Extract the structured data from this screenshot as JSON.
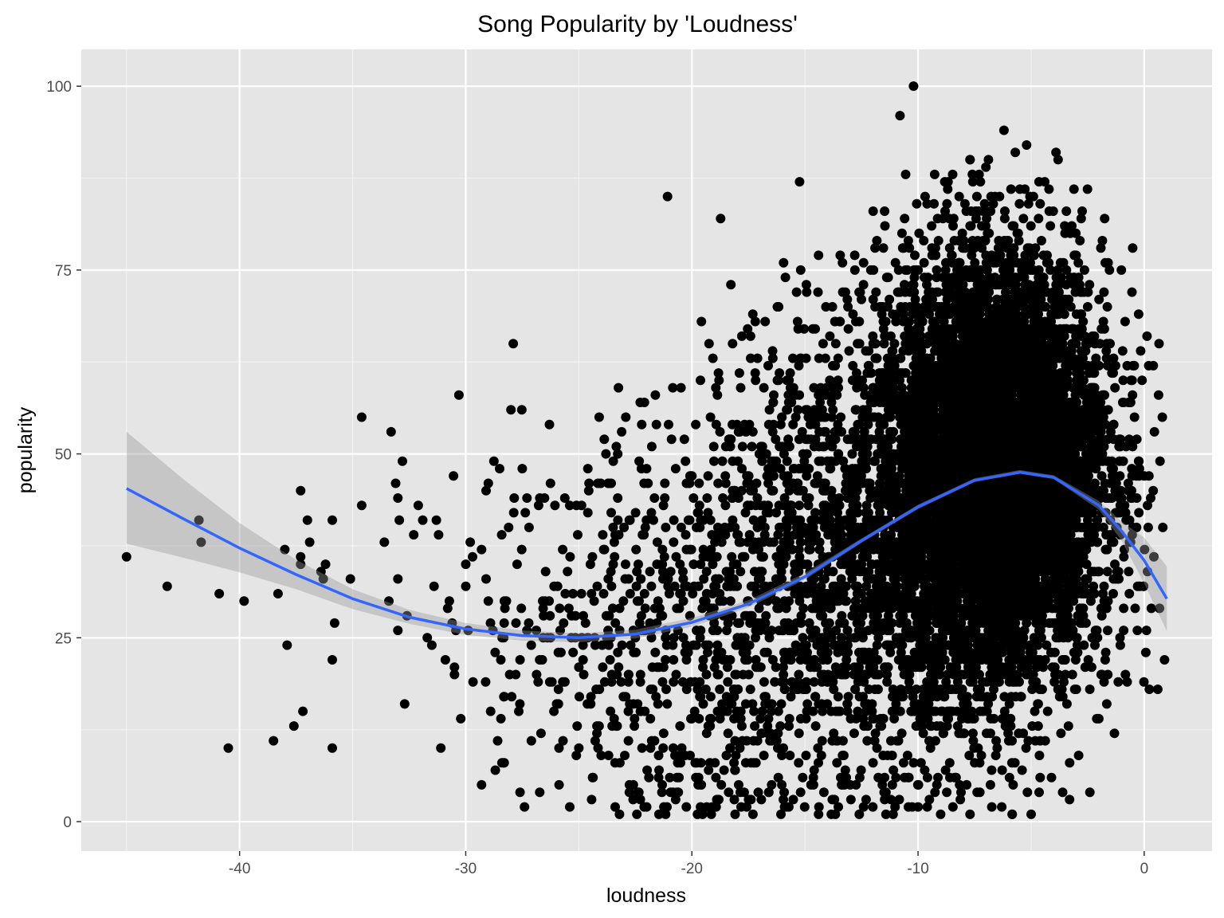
{
  "chart_data": {
    "type": "scatter",
    "title": "Song Popularity by 'Loudness'",
    "xlabel": "loudness",
    "ylabel": "popularity",
    "xlim": [
      -47,
      3
    ],
    "ylim": [
      -4,
      105
    ],
    "x_ticks": [
      -40,
      -30,
      -20,
      -10,
      0
    ],
    "x_tick_labels": [
      "-40",
      "-30",
      "-20",
      "-10",
      "0"
    ],
    "y_ticks": [
      0,
      25,
      50,
      75,
      100
    ],
    "y_tick_labels": [
      "0",
      "25",
      "50",
      "75",
      "100"
    ],
    "grid": true,
    "legend": "none",
    "colors": {
      "panel": "#e5e5e5",
      "grid_major": "#ffffff",
      "points": "#000000",
      "smooth_line": "#3366ff",
      "ribbon": "#999999"
    },
    "points": [
      [
        -45.0,
        36
      ],
      [
        -43.2,
        32
      ],
      [
        -41.8,
        41
      ],
      [
        -41.7,
        38
      ],
      [
        -40.9,
        31
      ],
      [
        -40.5,
        10
      ],
      [
        -39.8,
        30
      ],
      [
        -38.5,
        11
      ],
      [
        -38.3,
        31
      ],
      [
        -38.0,
        37
      ],
      [
        -37.9,
        24
      ],
      [
        -37.6,
        13
      ],
      [
        -37.3,
        45
      ],
      [
        -37.3,
        35
      ],
      [
        -37.3,
        36
      ],
      [
        -37.2,
        15
      ],
      [
        -37.0,
        41
      ],
      [
        -36.9,
        38
      ],
      [
        -36.4,
        34
      ],
      [
        -36.3,
        33
      ],
      [
        -36.2,
        35
      ],
      [
        -35.9,
        41
      ],
      [
        -35.9,
        22
      ],
      [
        -35.9,
        10
      ],
      [
        -35.8,
        27
      ],
      [
        -35.1,
        33
      ],
      [
        -34.6,
        55
      ],
      [
        -34.6,
        43
      ],
      [
        -33.6,
        38
      ],
      [
        -33.4,
        30
      ],
      [
        -33.3,
        53
      ],
      [
        -33.1,
        46
      ],
      [
        -33.0,
        26
      ],
      [
        -33.0,
        33
      ],
      [
        -32.8,
        49
      ],
      [
        -32.7,
        16
      ],
      [
        -32.6,
        28
      ],
      [
        -32.1,
        43
      ],
      [
        -31.9,
        41
      ],
      [
        -31.7,
        25
      ],
      [
        -31.4,
        32
      ],
      [
        -31.3,
        41
      ],
      [
        -31.2,
        39
      ],
      [
        -31.1,
        10
      ],
      [
        -30.9,
        22
      ],
      [
        -30.6,
        27
      ],
      [
        -30.5,
        21
      ],
      [
        -30.5,
        20
      ],
      [
        -30.3,
        58
      ],
      [
        -29.8,
        38
      ],
      [
        -29.7,
        36
      ],
      [
        -29.3,
        5
      ],
      [
        -29.3,
        37
      ],
      [
        -29.1,
        45
      ],
      [
        -29.0,
        30
      ],
      [
        -28.9,
        15
      ],
      [
        -28.8,
        26
      ],
      [
        -28.7,
        23
      ],
      [
        -28.5,
        48
      ],
      [
        -28.4,
        8
      ],
      [
        -28.3,
        17
      ],
      [
        -28.2,
        30
      ],
      [
        -28.0,
        56
      ],
      [
        -27.9,
        65
      ],
      [
        -27.6,
        4
      ],
      [
        -27.5,
        48
      ],
      [
        -27.4,
        2
      ],
      [
        -27.2,
        40
      ],
      [
        -27.1,
        11
      ],
      [
        -26.6,
        30
      ],
      [
        -26.3,
        54
      ],
      [
        -26.1,
        15
      ],
      [
        -25.9,
        18
      ],
      [
        -25.7,
        11
      ],
      [
        -25.4,
        2
      ],
      [
        -25.0,
        21
      ],
      [
        -24.6,
        42
      ],
      [
        -24.4,
        36
      ],
      [
        -24.2,
        13
      ],
      [
        -24.1,
        55
      ],
      [
        -23.8,
        50
      ],
      [
        -23.7,
        46
      ],
      [
        -23.5,
        29
      ],
      [
        -23.2,
        1
      ],
      [
        -23.0,
        40
      ],
      [
        -22.5,
        25
      ],
      [
        -22.1,
        57
      ],
      [
        -22.0,
        2
      ],
      [
        -21.5,
        16
      ],
      [
        -21.2,
        44
      ],
      [
        -21.0,
        31
      ],
      [
        -20.9,
        52
      ],
      [
        -20.6,
        4
      ],
      [
        -20.5,
        8
      ],
      [
        -20.4,
        19
      ],
      [
        -20.0,
        47
      ],
      [
        -19.5,
        36
      ],
      [
        -19.2,
        14
      ],
      [
        -18.8,
        60
      ],
      [
        -18.7,
        5
      ],
      [
        -18.3,
        51
      ],
      [
        -18.2,
        65
      ],
      [
        -17.9,
        61
      ],
      [
        -17.4,
        63
      ],
      [
        -17.1,
        63
      ],
      [
        -16.6,
        54
      ],
      [
        -16.2,
        70
      ],
      [
        -15.8,
        60
      ],
      [
        -15.3,
        67
      ],
      [
        -14.9,
        56
      ],
      [
        -14.7,
        55
      ],
      [
        -14.4,
        77
      ],
      [
        -14.2,
        65
      ],
      [
        -13.9,
        66
      ],
      [
        -13.7,
        59
      ],
      [
        -13.1,
        70
      ],
      [
        -12.8,
        77
      ],
      [
        -12.6,
        68
      ],
      [
        -12.4,
        55
      ],
      [
        -12.0,
        66
      ],
      [
        -11.7,
        60
      ],
      [
        -11.5,
        65
      ],
      [
        -11.2,
        61
      ],
      [
        -10.8,
        72
      ],
      [
        -10.5,
        50
      ],
      [
        -10.2,
        100
      ],
      [
        -10.8,
        96
      ],
      [
        -9.6,
        84
      ],
      [
        -9.4,
        81
      ],
      [
        -8.9,
        82
      ],
      [
        -8.6,
        78
      ],
      [
        -8.2,
        79
      ],
      [
        -7.7,
        90
      ],
      [
        -7.3,
        88
      ],
      [
        -7.0,
        89
      ],
      [
        -6.6,
        85
      ],
      [
        -6.2,
        94
      ],
      [
        -5.7,
        91
      ],
      [
        -5.5,
        86
      ],
      [
        -5.2,
        92
      ],
      [
        -4.9,
        85
      ],
      [
        -4.6,
        84
      ],
      [
        -4.4,
        87
      ],
      [
        -4.2,
        83
      ],
      [
        -3.9,
        91
      ],
      [
        -3.7,
        76
      ],
      [
        -3.5,
        80
      ],
      [
        -3.2,
        81
      ],
      [
        -2.9,
        74
      ],
      [
        -2.7,
        68
      ],
      [
        -2.5,
        70
      ],
      [
        -2.2,
        66
      ],
      [
        -2.0,
        62
      ],
      [
        -1.8,
        55
      ],
      [
        -1.4,
        48
      ],
      [
        -1.0,
        44
      ],
      [
        -0.5,
        40
      ],
      [
        0.2,
        62
      ],
      [
        0.4,
        45
      ],
      [
        0.7,
        49
      ],
      [
        0.8,
        55
      ],
      [
        0.9,
        22
      ],
      [
        0.6,
        18
      ],
      [
        0.1,
        26
      ],
      [
        -0.2,
        32
      ],
      [
        -0.4,
        29
      ],
      [
        -0.6,
        38
      ],
      [
        -0.8,
        41
      ],
      [
        -1.1,
        52
      ],
      [
        -1.3,
        35
      ],
      [
        -1.6,
        30
      ],
      [
        -1.9,
        20
      ],
      [
        -2.1,
        14
      ],
      [
        -2.4,
        4
      ],
      [
        -2.9,
        9
      ],
      [
        -3.3,
        3
      ],
      [
        -3.6,
        17
      ],
      [
        -4.1,
        6
      ],
      [
        -4.6,
        11
      ],
      [
        -5.0,
        1
      ],
      [
        -5.4,
        7
      ],
      [
        -5.9,
        13
      ],
      [
        -6.3,
        2
      ],
      [
        -6.8,
        5
      ],
      [
        -7.2,
        9
      ],
      [
        -7.7,
        1
      ],
      [
        -8.1,
        4
      ],
      [
        -8.6,
        8
      ],
      [
        -9.0,
        1
      ],
      [
        -9.5,
        3
      ],
      [
        -10.0,
        2
      ],
      [
        -10.6,
        6
      ],
      [
        -11.1,
        1
      ],
      [
        -11.5,
        4
      ],
      [
        -12.0,
        2
      ],
      [
        -12.6,
        1
      ],
      [
        -13.0,
        5
      ],
      [
        -13.7,
        3
      ],
      [
        -14.4,
        1
      ],
      [
        -15.1,
        6
      ],
      [
        -15.9,
        2
      ],
      [
        -16.6,
        4
      ],
      [
        -17.3,
        1
      ],
      [
        -18.1,
        7
      ],
      [
        -18.9,
        3
      ],
      [
        -19.6,
        5
      ],
      [
        -20.3,
        9
      ],
      [
        -21.1,
        2
      ],
      [
        -21.9,
        6
      ],
      [
        -22.6,
        3
      ],
      [
        -23.4,
        8
      ],
      [
        -24.2,
        12
      ],
      [
        -25.0,
        10
      ],
      [
        -25.9,
        16
      ],
      [
        -26.8,
        19
      ],
      [
        -27.6,
        22
      ],
      [
        -28.3,
        27
      ],
      [
        -29.1,
        33
      ],
      [
        -30.0,
        35
      ],
      [
        -30.8,
        29
      ],
      [
        -31.5,
        24
      ],
      [
        -32.3,
        39
      ],
      [
        -33.0,
        44
      ],
      [
        -25.5,
        34
      ],
      [
        -24.8,
        28
      ],
      [
        -23.9,
        37
      ],
      [
        -22.8,
        33
      ],
      [
        -21.8,
        26
      ],
      [
        -20.8,
        41
      ],
      [
        -19.8,
        24
      ],
      [
        -18.9,
        39
      ],
      [
        -17.9,
        27
      ],
      [
        -16.9,
        34
      ],
      [
        -15.9,
        44
      ],
      [
        -14.9,
        31
      ],
      [
        -13.9,
        48
      ],
      [
        -12.9,
        38
      ],
      [
        -11.9,
        49
      ],
      [
        -10.9,
        42
      ],
      [
        -9.9,
        58
      ],
      [
        -8.9,
        53
      ],
      [
        -7.9,
        47
      ],
      [
        -6.9,
        60
      ],
      [
        -5.9,
        55
      ],
      [
        -4.9,
        43
      ],
      [
        -3.9,
        50
      ],
      [
        -2.9,
        38
      ],
      [
        -1.9,
        45
      ],
      [
        -0.9,
        36
      ]
    ],
    "dense_regions": [
      {
        "cx": -6.0,
        "cy": 48,
        "sx": 2.2,
        "sy": 14,
        "n": 5200
      },
      {
        "cx": -9.5,
        "cy": 43,
        "sx": 2.6,
        "sy": 17,
        "n": 1600
      },
      {
        "cx": -14.0,
        "cy": 34,
        "sx": 3.0,
        "sy": 16,
        "n": 900
      },
      {
        "cx": -19.5,
        "cy": 27,
        "sx": 3.2,
        "sy": 14,
        "n": 480
      },
      {
        "cx": -25.0,
        "cy": 28,
        "sx": 3.0,
        "sy": 12,
        "n": 160
      }
    ],
    "smooth": {
      "x": [
        -45,
        -42.5,
        -40,
        -37.5,
        -35,
        -32.5,
        -30,
        -27.5,
        -25,
        -22.5,
        -20,
        -17.5,
        -15,
        -12.5,
        -10,
        -7.5,
        -5.5,
        -4,
        -2,
        -1,
        0,
        1
      ],
      "y": [
        45.3,
        41.2,
        37.2,
        33.6,
        30.3,
        27.8,
        26.2,
        25.3,
        25.0,
        25.5,
        27.1,
        29.6,
        33.3,
        38.2,
        42.8,
        46.4,
        47.5,
        46.8,
        43.0,
        39.5,
        35.5,
        30.3
      ],
      "lower": [
        37.8,
        35.9,
        33.9,
        31.6,
        28.9,
        26.9,
        25.4,
        24.6,
        24.4,
        24.9,
        26.5,
        29.1,
        32.9,
        37.9,
        42.5,
        46.2,
        47.3,
        46.6,
        42.4,
        38.2,
        32.4,
        25.9
      ],
      "upper": [
        53.0,
        46.6,
        40.6,
        35.6,
        31.6,
        28.8,
        27.0,
        26.0,
        25.6,
        26.1,
        27.7,
        30.1,
        33.8,
        38.5,
        43.1,
        46.7,
        47.8,
        47.1,
        43.6,
        40.8,
        38.6,
        34.7
      ]
    }
  }
}
